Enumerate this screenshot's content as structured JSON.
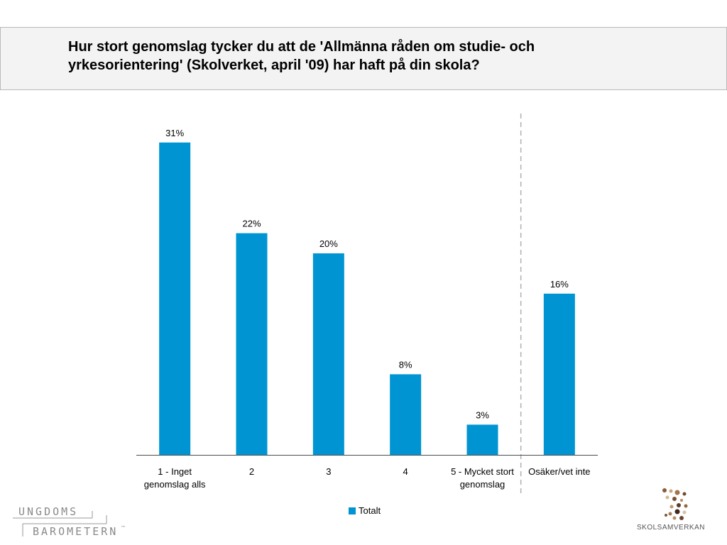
{
  "title": "Hur stort genomslag tycker du att de 'Allmänna råden om studie- och\nyrkesorientering' (Skolverket, april '09) har haft på din skola?",
  "colors": {
    "bar": "#0095d2",
    "axis": "#4d4d4d",
    "divider": "#b0b0b0"
  },
  "chart_data": {
    "type": "bar",
    "categories": [
      "1 - Inget\ngenomslag alls",
      "2",
      "3",
      "4",
      "5 - Mycket stort\ngenomslag",
      "Osäker/vet inte"
    ],
    "series": [
      {
        "name": "Totalt",
        "values": [
          31,
          22,
          20,
          8,
          3,
          16
        ],
        "labels": [
          "31%",
          "22%",
          "20%",
          "8%",
          "3%",
          "16%"
        ]
      }
    ],
    "ylim": [
      0,
      34
    ],
    "grid": false,
    "legend": "bottom",
    "divider_between": [
      "5 - Mycket stort\ngenomslag",
      "Osäker/vet inte"
    ]
  },
  "logos": {
    "left_line1": "UNGDOMS",
    "left_line2": "BAROMETERN",
    "left_tm": "™",
    "right": "SKOLSAMVERKAN"
  }
}
